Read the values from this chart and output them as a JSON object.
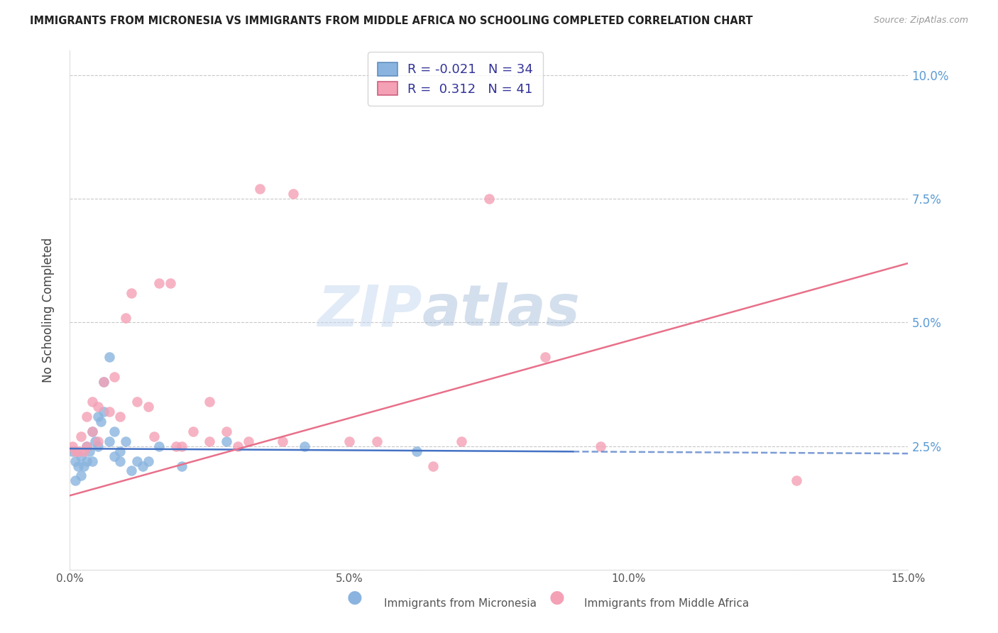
{
  "title": "IMMIGRANTS FROM MICRONESIA VS IMMIGRANTS FROM MIDDLE AFRICA NO SCHOOLING COMPLETED CORRELATION CHART",
  "source": "Source: ZipAtlas.com",
  "ylabel": "No Schooling Completed",
  "xlim": [
    0.0,
    0.15
  ],
  "ylim": [
    0.0,
    0.105
  ],
  "yticks": [
    0.0,
    0.025,
    0.05,
    0.075,
    0.1
  ],
  "ytick_labels": [
    "",
    "2.5%",
    "5.0%",
    "7.5%",
    "10.0%"
  ],
  "xticks": [
    0.0,
    0.05,
    0.1,
    0.15
  ],
  "xtick_labels": [
    "0.0%",
    "5.0%",
    "10.0%",
    "15.0%"
  ],
  "legend1_r": "-0.021",
  "legend1_n": "34",
  "legend2_r": "0.312",
  "legend2_n": "41",
  "series1_color": "#8ab4df",
  "series2_color": "#f4a0b5",
  "line1_color": "#4472c4",
  "line2_color": "#e8708a",
  "watermark_zip": "ZIP",
  "watermark_atlas": "atlas",
  "background_color": "#ffffff",
  "grid_color": "#c8c8c8",
  "right_axis_color": "#5b9bd5",
  "title_color": "#222222",
  "source_color": "#999999",
  "series1_x": [
    0.0005,
    0.001,
    0.001,
    0.0015,
    0.002,
    0.002,
    0.0025,
    0.003,
    0.003,
    0.0035,
    0.004,
    0.004,
    0.0045,
    0.005,
    0.005,
    0.0055,
    0.006,
    0.006,
    0.007,
    0.007,
    0.008,
    0.008,
    0.009,
    0.009,
    0.01,
    0.011,
    0.012,
    0.013,
    0.014,
    0.016,
    0.02,
    0.028,
    0.042,
    0.062
  ],
  "series1_y": [
    0.024,
    0.022,
    0.018,
    0.021,
    0.023,
    0.019,
    0.021,
    0.025,
    0.022,
    0.024,
    0.028,
    0.022,
    0.026,
    0.031,
    0.025,
    0.03,
    0.038,
    0.032,
    0.043,
    0.026,
    0.028,
    0.023,
    0.024,
    0.022,
    0.026,
    0.02,
    0.022,
    0.021,
    0.022,
    0.025,
    0.021,
    0.026,
    0.025,
    0.024
  ],
  "series2_x": [
    0.0005,
    0.001,
    0.0015,
    0.002,
    0.0025,
    0.003,
    0.003,
    0.004,
    0.004,
    0.005,
    0.005,
    0.006,
    0.007,
    0.008,
    0.009,
    0.01,
    0.011,
    0.012,
    0.014,
    0.015,
    0.016,
    0.018,
    0.019,
    0.02,
    0.022,
    0.025,
    0.025,
    0.028,
    0.03,
    0.032,
    0.034,
    0.038,
    0.04,
    0.05,
    0.055,
    0.065,
    0.07,
    0.075,
    0.085,
    0.095,
    0.13
  ],
  "series2_y": [
    0.025,
    0.024,
    0.024,
    0.027,
    0.024,
    0.031,
    0.025,
    0.034,
    0.028,
    0.033,
    0.026,
    0.038,
    0.032,
    0.039,
    0.031,
    0.051,
    0.056,
    0.034,
    0.033,
    0.027,
    0.058,
    0.058,
    0.025,
    0.025,
    0.028,
    0.034,
    0.026,
    0.028,
    0.025,
    0.026,
    0.077,
    0.026,
    0.076,
    0.026,
    0.026,
    0.021,
    0.026,
    0.075,
    0.043,
    0.025,
    0.018
  ],
  "line1_x0": 0.0,
  "line1_x1": 0.15,
  "line1_y0": 0.0245,
  "line1_y1": 0.0235,
  "line1_solid_end": 0.09,
  "line2_x0": 0.0,
  "line2_x1": 0.15,
  "line2_y0": 0.015,
  "line2_y1": 0.062
}
